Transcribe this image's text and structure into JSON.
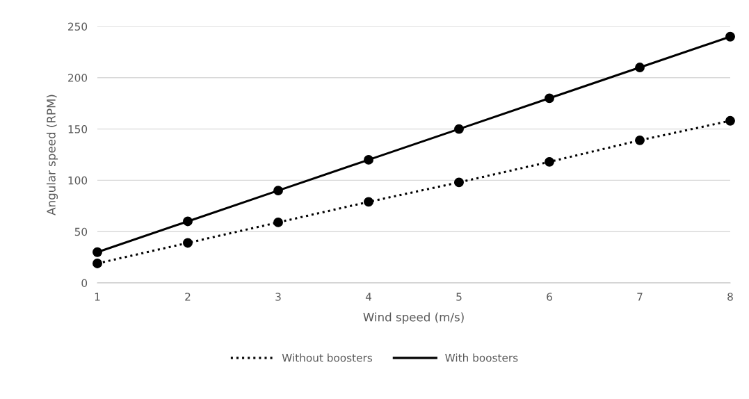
{
  "chart_data": {
    "type": "line",
    "xlabel": "Wind speed (m/s)",
    "ylabel": "Angular speed (RPM)",
    "x": [
      1,
      2,
      3,
      4,
      5,
      6,
      7,
      8
    ],
    "series": [
      {
        "name": "Without boosters",
        "color": "#000000",
        "line_style": "dotted",
        "values": [
          19,
          39,
          59,
          79,
          98,
          118,
          139,
          158
        ]
      },
      {
        "name": "With boosters",
        "color": "#000000",
        "line_style": "solid",
        "values": [
          30,
          60,
          90,
          120,
          150,
          180,
          210,
          240
        ]
      }
    ],
    "xlim": [
      1,
      8
    ],
    "xticks": [
      1,
      2,
      3,
      4,
      5,
      6,
      7,
      8
    ],
    "ylim": [
      0,
      250
    ],
    "yticks": [
      0,
      50,
      100,
      150,
      200,
      250
    ],
    "grid": "y",
    "legend": "bottom",
    "marker": "circle"
  }
}
